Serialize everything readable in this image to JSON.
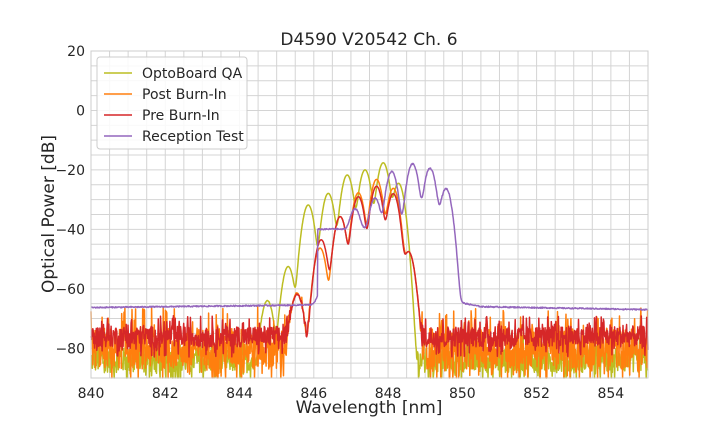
{
  "chart_data": {
    "type": "line",
    "title": "D4590 V20542 Ch. 6",
    "xlabel": "Wavelength [nm]",
    "ylabel": "Optical Power [dB]",
    "xlim": [
      840,
      855
    ],
    "ylim": [
      -90,
      20
    ],
    "xticks": [
      "840",
      "842",
      "844",
      "846",
      "848",
      "850",
      "852",
      "854"
    ],
    "yticks": [
      "20",
      "0",
      "−20",
      "−40",
      "−60",
      "−80"
    ],
    "grid": true,
    "legend": "top-left",
    "series": [
      {
        "name": "OptoBoard QA",
        "color": "#bcbd22",
        "noise_floor_db": -84,
        "noise_amp_db": 6,
        "peaks": [
          [
            844.75,
            -64
          ],
          [
            845.31,
            -52.5
          ],
          [
            845.85,
            -31.8
          ],
          [
            846.39,
            -27.9
          ],
          [
            846.9,
            -21.7
          ],
          [
            847.38,
            -20
          ],
          [
            847.87,
            -17.6
          ],
          [
            848.28,
            -24.5
          ]
        ]
      },
      {
        "name": "Post Burn-In",
        "color": "#ff7f0e",
        "noise_floor_db": -80,
        "noise_amp_db": 10,
        "peaks": [
          [
            845.55,
            -61.5
          ],
          [
            846.17,
            -46.3
          ],
          [
            846.71,
            -35.7
          ],
          [
            847.2,
            -27.7
          ],
          [
            847.69,
            -23.2
          ],
          [
            848.14,
            -26.2
          ],
          [
            848.55,
            -47.5
          ]
        ]
      },
      {
        "name": "Pre Burn-In",
        "color": "#d62728",
        "noise_floor_db": -76,
        "noise_amp_db": 5,
        "peaks": [
          [
            845.55,
            -62
          ],
          [
            846.2,
            -43.5
          ],
          [
            846.71,
            -35.7
          ],
          [
            847.2,
            -29
          ],
          [
            847.69,
            -25.5
          ],
          [
            848.14,
            -28
          ],
          [
            848.55,
            -47.5
          ]
        ]
      },
      {
        "name": "Reception Test",
        "color": "#9467bd",
        "baseline_db": [
          [
            840,
            -66.3
          ],
          [
            845.5,
            -65.5
          ],
          [
            849.9,
            -64.5
          ],
          [
            850.5,
            -66
          ],
          [
            855,
            -67
          ]
        ],
        "peaks": [
          [
            846.2,
            -63
          ],
          [
            846.53,
            -54.8
          ],
          [
            847.11,
            -34
          ],
          [
            847.65,
            -29.9
          ],
          [
            848.1,
            -20.6
          ],
          [
            848.66,
            -18
          ],
          [
            849.13,
            -19.5
          ],
          [
            849.56,
            -26.5
          ]
        ]
      }
    ]
  }
}
